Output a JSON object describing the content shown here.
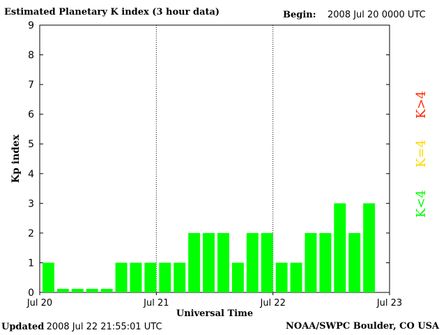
{
  "header": {
    "title": "Estimated Planetary K index (3 hour data)",
    "begin_label": "Begin:",
    "begin_value": "2008 Jul 20 0000 UTC"
  },
  "footer": {
    "updated_label": "Updated",
    "updated_value": "2008 Jul 22 21:55:01 UTC",
    "source": "NOAA/SWPC Boulder, CO USA"
  },
  "legend": {
    "items": [
      {
        "label": "K<4",
        "color": "#00ff00"
      },
      {
        "label": "K=4",
        "color": "#ffd700"
      },
      {
        "label": "K>4",
        "color": "#ff2a00"
      }
    ]
  },
  "chart_data": {
    "type": "bar",
    "title": "Estimated Planetary K index (3 hour data)",
    "xlabel": "Universal Time",
    "ylabel": "Kp index",
    "ylim": [
      0,
      9
    ],
    "yticks": [
      0,
      1,
      2,
      3,
      4,
      5,
      6,
      7,
      8,
      9
    ],
    "xticks": [
      "Jul 20",
      "Jul 21",
      "Jul 22",
      "Jul 23"
    ],
    "x": [
      "2008-07-20 00:00",
      "2008-07-20 03:00",
      "2008-07-20 06:00",
      "2008-07-20 09:00",
      "2008-07-20 12:00",
      "2008-07-20 15:00",
      "2008-07-20 18:00",
      "2008-07-20 21:00",
      "2008-07-21 00:00",
      "2008-07-21 03:00",
      "2008-07-21 06:00",
      "2008-07-21 09:00",
      "2008-07-21 12:00",
      "2008-07-21 15:00",
      "2008-07-21 18:00",
      "2008-07-21 21:00",
      "2008-07-22 00:00",
      "2008-07-22 03:00",
      "2008-07-22 06:00",
      "2008-07-22 09:00",
      "2008-07-22 12:00",
      "2008-07-22 15:00",
      "2008-07-22 18:00"
    ],
    "values": [
      1,
      0,
      0,
      0,
      0,
      1,
      1,
      1,
      1,
      1,
      2,
      2,
      2,
      1,
      2,
      2,
      1,
      1,
      2,
      2,
      3,
      2,
      3
    ],
    "bar_color": "#00ff00",
    "grid": false
  }
}
